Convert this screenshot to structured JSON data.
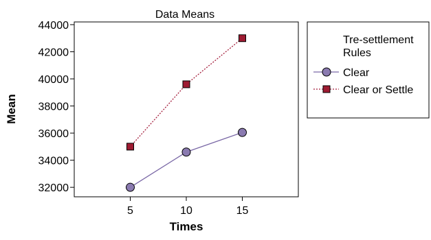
{
  "chart_data": {
    "type": "line",
    "title": "Data Means",
    "xlabel": "Times",
    "ylabel": "Mean",
    "x": [
      5,
      10,
      15
    ],
    "xticks": [
      "5",
      "10",
      "15"
    ],
    "yticks": [
      "32000",
      "34000",
      "36000",
      "38000",
      "40000",
      "42000",
      "44000"
    ],
    "xlim": [
      0,
      20
    ],
    "ylim": [
      31300,
      44200
    ],
    "grid": false,
    "legend": {
      "title": "Tre-settlement Rules",
      "title_lines": [
        "Tre-settlement",
        "Rules"
      ],
      "placement": "right"
    },
    "series": [
      {
        "name": "Clear",
        "values": [
          32000,
          34600,
          36050
        ],
        "marker": "circle",
        "line_style": "solid",
        "line_color": "#7a68a6",
        "marker_fill": "#8a7ab0"
      },
      {
        "name": "Clear or Settle",
        "values": [
          35000,
          39600,
          43000
        ],
        "marker": "square",
        "line_style": "dotted",
        "line_color": "#a31c3a",
        "marker_fill": "#9e1b32"
      }
    ]
  }
}
